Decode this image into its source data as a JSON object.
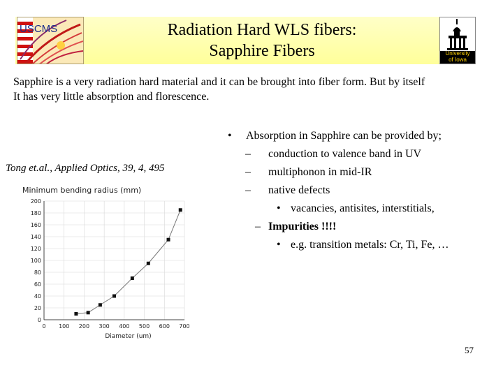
{
  "slide": {
    "title_line1": "Radiation Hard WLS fibers:",
    "title_line2": "Sapphire Fibers",
    "left_logo_text": "USCMS",
    "right_logo_text": [
      "University",
      "of Iowa"
    ],
    "intro_line1": "Sapphire is a very radiation hard material and it can be brought into fiber form. But by itself",
    "intro_line2": "It has very little absorption and florescence.",
    "caption": "Tong et.al., Applied Optics, 39, 4, 495",
    "page_number": "57"
  },
  "bullets": [
    {
      "marker": "•",
      "text": "Absorption in Sapphire can be provided by;",
      "bold": false
    },
    {
      "marker": "–",
      "text": "conduction to valence band in UV",
      "bold": false
    },
    {
      "marker": "–",
      "text": "multiphonon in mid-IR",
      "bold": false
    },
    {
      "marker": "–",
      "text": "native defects",
      "bold": false
    },
    {
      "marker": "•",
      "text": "vacancies, antisites, interstitials,",
      "bold": false
    },
    {
      "marker": "–",
      "text": "Impurities !!!!",
      "bold": true
    },
    {
      "marker": "•",
      "text": "e.g. transition metals: Cr, Ti, Fe, …",
      "bold": false
    }
  ],
  "chart_data": {
    "type": "line",
    "title": "Minimum bending radius (mm)",
    "xlabel": "Diameter (um)",
    "ylabel": "",
    "xlim": [
      0,
      700
    ],
    "ylim": [
      0,
      200
    ],
    "xticks": [
      "0",
      "100",
      "200",
      "300",
      "400",
      "500",
      "600",
      "700"
    ],
    "yticks": [
      "0",
      "20",
      "40",
      "60",
      "80",
      "100",
      "120",
      "140",
      "160",
      "180",
      "200"
    ],
    "grid": true,
    "x": [
      160,
      220,
      280,
      350,
      440,
      520,
      620,
      680
    ],
    "y": [
      10,
      12,
      25,
      40,
      70,
      95,
      135,
      185
    ]
  }
}
